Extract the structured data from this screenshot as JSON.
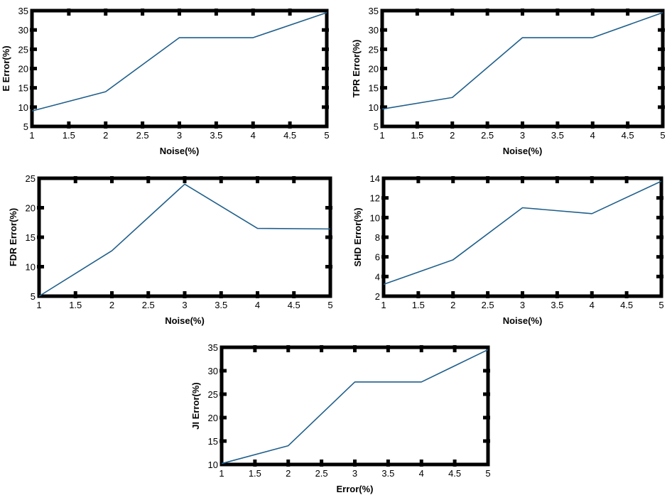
{
  "chart_data": [
    {
      "type": "line",
      "xlabel": "Noise(%)",
      "ylabel": "E Error(%)",
      "xlim": [
        1,
        5
      ],
      "ylim": [
        5,
        35
      ],
      "xticks": [
        "1",
        "1.5",
        "2",
        "2.5",
        "3",
        "3.5",
        "4",
        "4.5",
        "5"
      ],
      "yticks": [
        "5",
        "10",
        "15",
        "20",
        "25",
        "30",
        "35"
      ],
      "x": [
        1,
        2,
        3,
        4,
        5
      ],
      "y": [
        9,
        14,
        28,
        28,
        34.5
      ],
      "line_color": "#1f5f8b",
      "grid": false
    },
    {
      "type": "line",
      "xlabel": "Noise(%)",
      "ylabel": "TPR Error(%)",
      "xlim": [
        1,
        5
      ],
      "ylim": [
        5,
        35
      ],
      "xticks": [
        "1",
        "1.5",
        "2",
        "2.5",
        "3",
        "3.5",
        "4",
        "4.5",
        "5"
      ],
      "yticks": [
        "5",
        "10",
        "15",
        "20",
        "25",
        "30",
        "35"
      ],
      "x": [
        1,
        2,
        3,
        4,
        5
      ],
      "y": [
        9.5,
        12.5,
        28,
        28,
        34.5
      ],
      "line_color": "#1f5f8b",
      "grid": false
    },
    {
      "type": "line",
      "xlabel": "Noise(%)",
      "ylabel": "FDR Error(%)",
      "xlim": [
        1,
        5
      ],
      "ylim": [
        5,
        25
      ],
      "xticks": [
        "1",
        "1.5",
        "2",
        "2.5",
        "3",
        "3.5",
        "4",
        "4.5",
        "5"
      ],
      "yticks": [
        "5",
        "10",
        "15",
        "20",
        "25"
      ],
      "x": [
        1,
        2,
        3,
        4,
        5
      ],
      "y": [
        5,
        12.7,
        24,
        16.5,
        16.4
      ],
      "line_color": "#1f5f8b",
      "grid": false
    },
    {
      "type": "line",
      "xlabel": "Noise(%)",
      "ylabel": "SHD Error(%)",
      "xlim": [
        1,
        5
      ],
      "ylim": [
        2,
        14
      ],
      "xticks": [
        "1",
        "1.5",
        "2",
        "2.5",
        "3",
        "3.5",
        "4",
        "4.5",
        "5"
      ],
      "yticks": [
        "2",
        "4",
        "6",
        "8",
        "10",
        "12",
        "14"
      ],
      "x": [
        1,
        2,
        3,
        4,
        5
      ],
      "y": [
        3.2,
        5.7,
        11,
        10.4,
        13.7
      ],
      "line_color": "#1f5f8b",
      "grid": false
    },
    {
      "type": "line",
      "xlabel": "Error(%)",
      "ylabel": "JI Error(%)",
      "xlim": [
        1,
        5
      ],
      "ylim": [
        10,
        35
      ],
      "xticks": [
        "1",
        "1.5",
        "2",
        "2.5",
        "3",
        "3.5",
        "4",
        "4.5",
        "5"
      ],
      "yticks": [
        "10",
        "15",
        "20",
        "25",
        "30",
        "35"
      ],
      "x": [
        1,
        2,
        3,
        4,
        5
      ],
      "y": [
        10.2,
        14,
        27.6,
        27.6,
        34.5
      ],
      "line_color": "#1f5f8b",
      "grid": false
    }
  ]
}
